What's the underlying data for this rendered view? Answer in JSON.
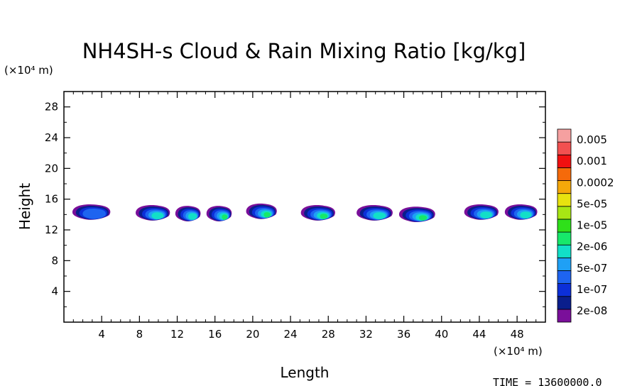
{
  "chart_data": {
    "type": "heatmap",
    "title": "NH4SH-s Cloud & Rain Mixing Ratio [kg/kg]",
    "xlabel": "Length",
    "ylabel": "Height",
    "x_unit": "(×10⁴ m)",
    "y_unit": "(×10⁴ m)",
    "xlim": [
      0,
      51
    ],
    "ylim": [
      0,
      30
    ],
    "x_ticks": [
      4,
      8,
      12,
      16,
      20,
      24,
      28,
      32,
      36,
      40,
      44,
      48
    ],
    "y_ticks": [
      4,
      8,
      12,
      16,
      20,
      24,
      28
    ],
    "time_label": "TIME = 13600000.0",
    "colorbar": {
      "labels": [
        "0.005",
        "0.001",
        "0.0002",
        "5e-05",
        "1e-05",
        "2e-06",
        "5e-07",
        "1e-07",
        "2e-08"
      ],
      "colors": [
        "#7a0f9a",
        "#0a1e8c",
        "#0c2fd8",
        "#1e64f0",
        "#1fa0f5",
        "#12dfc8",
        "#17e86a",
        "#2fe01a",
        "#a8e614",
        "#e8e20f",
        "#f5a80a",
        "#f56a0a",
        "#f01010",
        "#f25050",
        "#f5a0a0"
      ]
    },
    "clouds": [
      {
        "x": 3.0,
        "y": 14.3,
        "width": 4.2,
        "peak": "1e-07"
      },
      {
        "x": 9.5,
        "y": 14.2,
        "width": 3.8,
        "peak": "2e-06"
      },
      {
        "x": 13.2,
        "y": 14.1,
        "width": 2.8,
        "peak": "2e-06"
      },
      {
        "x": 16.5,
        "y": 14.1,
        "width": 2.8,
        "peak": "1e-05"
      },
      {
        "x": 21.0,
        "y": 14.4,
        "width": 3.4,
        "peak": "1e-05"
      },
      {
        "x": 27.0,
        "y": 14.2,
        "width": 3.8,
        "peak": "1e-05"
      },
      {
        "x": 33.0,
        "y": 14.2,
        "width": 4.0,
        "peak": "2e-06"
      },
      {
        "x": 37.5,
        "y": 14.0,
        "width": 4.0,
        "peak": "1e-05"
      },
      {
        "x": 44.3,
        "y": 14.3,
        "width": 3.8,
        "peak": "2e-06"
      },
      {
        "x": 48.5,
        "y": 14.3,
        "width": 3.6,
        "peak": "2e-06"
      }
    ]
  }
}
